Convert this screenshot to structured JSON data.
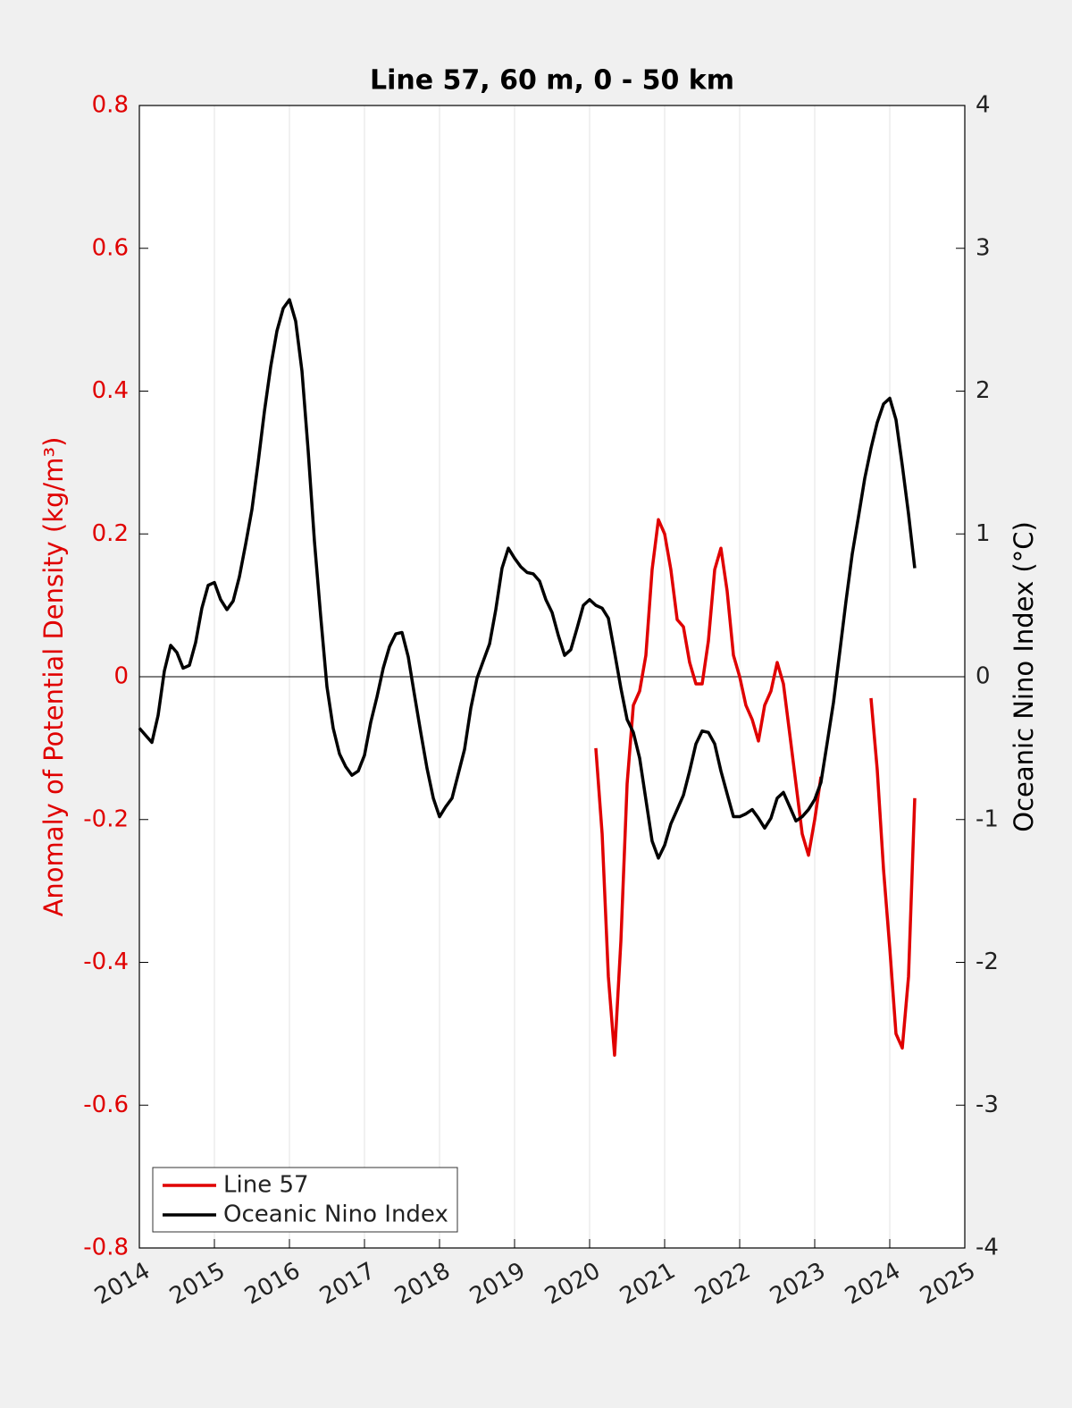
{
  "chart_data": {
    "type": "line",
    "title": "Line 57, 60 m, 0 - 50 km",
    "ylabel": "Anomaly of Potential Density (kg/m³)",
    "y2label": "Oceanic Nino Index (°C)",
    "x": [
      2014,
      2014.083,
      2014.167,
      2014.25,
      2014.333,
      2014.417,
      2014.5,
      2014.583,
      2014.667,
      2014.75,
      2014.833,
      2014.917,
      2015,
      2015.083,
      2015.167,
      2015.25,
      2015.333,
      2015.417,
      2015.5,
      2015.583,
      2015.667,
      2015.75,
      2015.833,
      2015.917,
      2016,
      2016.083,
      2016.167,
      2016.25,
      2016.333,
      2016.417,
      2016.5,
      2016.583,
      2016.667,
      2016.75,
      2016.833,
      2016.917,
      2017,
      2017.083,
      2017.167,
      2017.25,
      2017.333,
      2017.417,
      2017.5,
      2017.583,
      2017.667,
      2017.75,
      2017.833,
      2017.917,
      2018,
      2018.083,
      2018.167,
      2018.25,
      2018.333,
      2018.417,
      2018.5,
      2018.583,
      2018.667,
      2018.75,
      2018.833,
      2018.917,
      2019,
      2019.083,
      2019.167,
      2019.25,
      2019.333,
      2019.417,
      2019.5,
      2019.583,
      2019.667,
      2019.75,
      2019.833,
      2019.917,
      2020,
      2020.083,
      2020.167,
      2020.25,
      2020.333,
      2020.417,
      2020.5,
      2020.583,
      2020.667,
      2020.75,
      2020.833,
      2020.917,
      2021,
      2021.083,
      2021.167,
      2021.25,
      2021.333,
      2021.417,
      2021.5,
      2021.583,
      2021.667,
      2021.75,
      2021.833,
      2021.917,
      2022,
      2022.083,
      2022.167,
      2022.25,
      2022.333,
      2022.417,
      2022.5,
      2022.583,
      2022.667,
      2022.75,
      2022.833,
      2022.917,
      2023,
      2023.083,
      2023.167,
      2023.25,
      2023.333,
      2023.417,
      2023.5,
      2023.583,
      2023.667,
      2023.75,
      2023.833,
      2023.917,
      2024,
      2024.083,
      2024.167,
      2024.25,
      2024.333
    ],
    "series": [
      {
        "name": "Line 57",
        "color": "#e00000",
        "axis": "y",
        "values": [
          null,
          null,
          null,
          null,
          null,
          null,
          null,
          null,
          null,
          null,
          null,
          null,
          null,
          null,
          null,
          null,
          null,
          null,
          null,
          null,
          null,
          null,
          null,
          null,
          null,
          null,
          null,
          null,
          null,
          null,
          null,
          null,
          null,
          null,
          null,
          null,
          null,
          null,
          null,
          null,
          null,
          null,
          null,
          null,
          null,
          null,
          null,
          null,
          null,
          null,
          null,
          null,
          null,
          null,
          null,
          null,
          null,
          null,
          null,
          null,
          null,
          null,
          null,
          null,
          null,
          null,
          null,
          null,
          null,
          null,
          null,
          null,
          null,
          -0.1,
          -0.22,
          -0.42,
          -0.53,
          -0.37,
          -0.15,
          -0.04,
          -0.02,
          0.03,
          0.15,
          0.22,
          0.2,
          0.15,
          0.08,
          0.07,
          0.02,
          -0.01,
          -0.01,
          0.05,
          0.15,
          0.18,
          0.12,
          0.03,
          0.0,
          -0.04,
          -0.06,
          -0.09,
          -0.04,
          -0.02,
          0.02,
          -0.01,
          -0.08,
          -0.15,
          -0.22,
          -0.25,
          -0.2,
          -0.14,
          null,
          null,
          null,
          null,
          null,
          null,
          null,
          -0.03,
          -0.13,
          -0.27,
          -0.38,
          -0.5,
          -0.52,
          -0.42,
          -0.17
        ]
      },
      {
        "name": "Oceanic Nino Index",
        "color": "#000000",
        "axis": "y2",
        "values": [
          -0.36,
          -0.41,
          -0.46,
          -0.27,
          0.04,
          0.22,
          0.17,
          0.06,
          0.08,
          0.24,
          0.48,
          0.64,
          0.66,
          0.54,
          0.47,
          0.53,
          0.7,
          0.93,
          1.17,
          1.5,
          1.86,
          2.17,
          2.42,
          2.58,
          2.64,
          2.49,
          2.14,
          1.58,
          0.95,
          0.42,
          -0.07,
          -0.36,
          -0.54,
          -0.63,
          -0.69,
          -0.66,
          -0.55,
          -0.32,
          -0.14,
          0.06,
          0.21,
          0.3,
          0.31,
          0.14,
          -0.13,
          -0.39,
          -0.64,
          -0.85,
          -0.98,
          -0.91,
          -0.85,
          -0.68,
          -0.51,
          -0.22,
          -0.01,
          0.11,
          0.23,
          0.47,
          0.76,
          0.9,
          0.83,
          0.77,
          0.73,
          0.72,
          0.67,
          0.54,
          0.45,
          0.29,
          0.15,
          0.19,
          0.34,
          0.5,
          0.54,
          0.5,
          0.48,
          0.41,
          0.17,
          -0.08,
          -0.3,
          -0.39,
          -0.57,
          -0.86,
          -1.15,
          -1.27,
          -1.18,
          -1.03,
          -0.93,
          -0.83,
          -0.66,
          -0.47,
          -0.38,
          -0.39,
          -0.47,
          -0.66,
          -0.82,
          -0.98,
          -0.98,
          -0.96,
          -0.93,
          -0.99,
          -1.06,
          -0.99,
          -0.85,
          -0.81,
          -0.91,
          -1.01,
          -0.98,
          -0.93,
          -0.86,
          -0.74,
          -0.46,
          -0.18,
          0.17,
          0.53,
          0.86,
          1.12,
          1.39,
          1.6,
          1.78,
          1.91,
          1.95,
          1.8,
          1.48,
          1.14,
          0.76
        ]
      }
    ],
    "xlim": [
      2014,
      2025
    ],
    "xticks": [
      2014,
      2015,
      2016,
      2017,
      2018,
      2019,
      2020,
      2021,
      2022,
      2023,
      2024,
      2025
    ],
    "ylim": [
      -0.8,
      0.8
    ],
    "yticks": [
      -0.8,
      -0.6,
      -0.4,
      -0.2,
      0,
      0.2,
      0.4,
      0.6,
      0.8
    ],
    "y2lim": [
      -4,
      4
    ],
    "y2ticks": [
      -4,
      -3,
      -2,
      -1,
      0,
      1,
      2,
      3,
      4
    ],
    "grid": "x",
    "ylabel_color": "#e00000",
    "legend": "lower left"
  }
}
